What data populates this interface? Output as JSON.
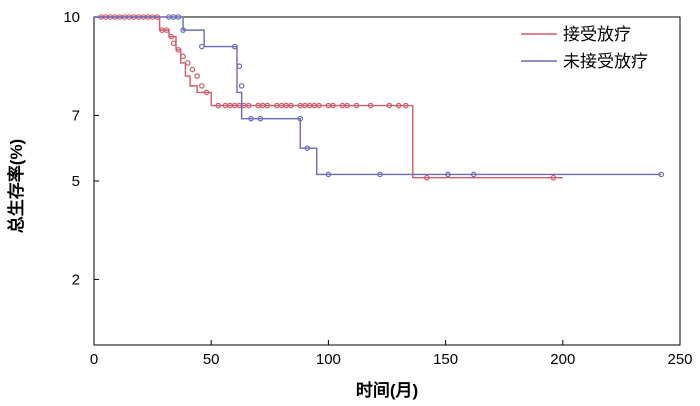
{
  "chart_data": {
    "type": "line",
    "title": "",
    "xlabel": "时间(月)",
    "ylabel": "总生存率(%)",
    "xlim": [
      0,
      250
    ],
    "ylim": [
      0,
      10
    ],
    "x_ticks": [
      0,
      50,
      100,
      150,
      200,
      250
    ],
    "y_ticks": [
      2,
      5,
      7,
      10
    ],
    "grid": false,
    "legend_position": "top-right",
    "series": [
      {
        "name": "接受放疗",
        "color": "#d05a6a",
        "x": [
          0,
          28,
          32,
          35,
          37,
          39,
          41,
          44,
          50,
          136,
          200
        ],
        "y": [
          10,
          9.6,
          9.4,
          9.0,
          8.6,
          8.2,
          7.9,
          7.7,
          7.3,
          5.1,
          5.1
        ],
        "censor_x": [
          3,
          5,
          7,
          9,
          11,
          13,
          15,
          17,
          19,
          21,
          23,
          25,
          27,
          29,
          31,
          33,
          34,
          36,
          38,
          40,
          42,
          44,
          46,
          48,
          53,
          56,
          58,
          60,
          62,
          64,
          66,
          70,
          72,
          74,
          78,
          80,
          82,
          84,
          88,
          90,
          92,
          94,
          96,
          100,
          102,
          106,
          108,
          112,
          118,
          126,
          130,
          133,
          142,
          196
        ],
        "censor_y": [
          10,
          10,
          10,
          10,
          10,
          10,
          10,
          10,
          10,
          10,
          10,
          10,
          10,
          9.6,
          9.6,
          9.4,
          9.2,
          9.0,
          8.8,
          8.6,
          8.4,
          8.2,
          7.9,
          7.7,
          7.3,
          7.3,
          7.3,
          7.3,
          7.3,
          7.3,
          7.3,
          7.3,
          7.3,
          7.3,
          7.3,
          7.3,
          7.3,
          7.3,
          7.3,
          7.3,
          7.3,
          7.3,
          7.3,
          7.3,
          7.3,
          7.3,
          7.3,
          7.3,
          7.3,
          7.3,
          7.3,
          7.3,
          5.1,
          5.1
        ]
      },
      {
        "name": "未接受放疗",
        "color": "#6a6ab8",
        "x": [
          0,
          38,
          47,
          61,
          63,
          88,
          95,
          100,
          242
        ],
        "y": [
          10,
          9.6,
          9.1,
          7.7,
          6.9,
          6.0,
          5.2,
          5.2,
          5.2
        ],
        "censor_x": [
          32,
          34,
          36,
          38,
          46,
          60,
          62,
          63,
          67,
          71,
          88,
          91,
          100,
          122,
          151,
          162,
          242
        ],
        "censor_y": [
          10,
          10,
          10,
          9.6,
          9.1,
          9.1,
          8.5,
          7.9,
          6.9,
          6.9,
          6.9,
          6.0,
          5.2,
          5.2,
          5.2,
          5.2,
          5.2
        ]
      }
    ]
  }
}
